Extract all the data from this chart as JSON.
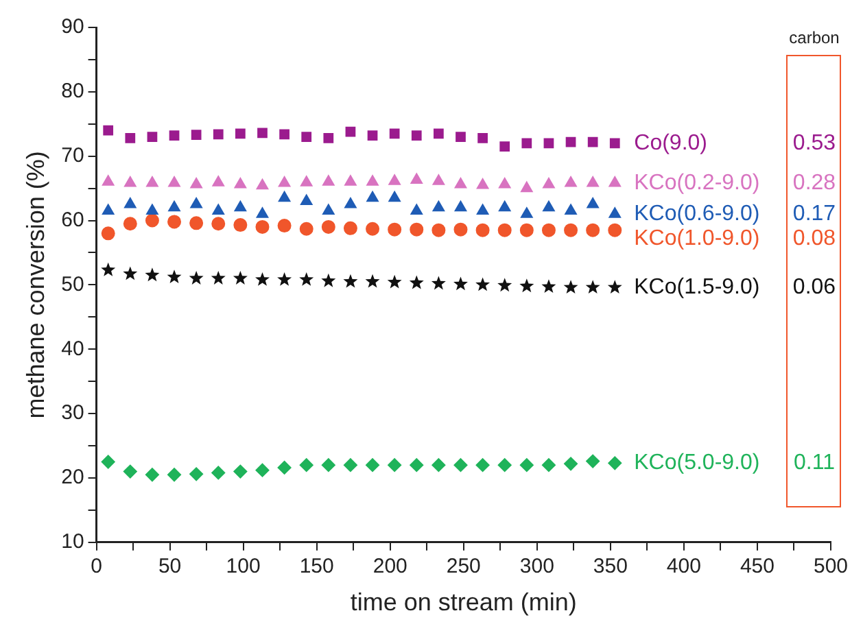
{
  "chart_data": {
    "type": "scatter",
    "xlabel": "time on stream (min)",
    "ylabel": "methane conversion (%)",
    "x": [
      8,
      23,
      38,
      53,
      68,
      83,
      98,
      113,
      128,
      143,
      158,
      173,
      188,
      203,
      218,
      233,
      248,
      263,
      278,
      293,
      308,
      323,
      338,
      353
    ],
    "series": [
      {
        "name": "Co(9.0)",
        "color": "#9b1b8e",
        "marker": "square",
        "values": [
          74,
          72.8,
          73,
          73.2,
          73.3,
          73.4,
          73.5,
          73.6,
          73.4,
          73,
          72.8,
          73.8,
          73.2,
          73.5,
          73.2,
          73.5,
          73,
          72.8,
          71.5,
          72,
          72,
          72.2,
          72.2,
          72
        ]
      },
      {
        "name": "KCo(0.2-9.0)",
        "color": "#d873c0",
        "marker": "triangle",
        "values": [
          66,
          65.8,
          65.8,
          65.8,
          65.6,
          65.9,
          65.6,
          65.4,
          65.8,
          65.9,
          66,
          66,
          66,
          66.1,
          66.3,
          66.1,
          65.6,
          65.5,
          65.6,
          65,
          65.6,
          65.8,
          65.8,
          65.8
        ]
      },
      {
        "name": "KCo(0.6-9.0)",
        "color": "#1f5cb5",
        "marker": "triangle",
        "values": [
          61.5,
          62.5,
          61.5,
          62,
          62.5,
          61.5,
          62,
          61,
          63.5,
          63,
          61.5,
          62.5,
          63.5,
          63.5,
          61.5,
          62,
          62,
          61.5,
          62,
          61,
          62,
          61.5,
          62.5,
          61
        ]
      },
      {
        "name": "KCo(1.0-9.0)",
        "color": "#f0562b",
        "marker": "circle",
        "values": [
          58,
          59.5,
          60,
          59.8,
          59.6,
          59.5,
          59.3,
          59,
          59.2,
          58.7,
          59,
          58.8,
          58.7,
          58.6,
          58.6,
          58.5,
          58.6,
          58.5,
          58.5,
          58.5,
          58.5,
          58.5,
          58.5,
          58.5
        ]
      },
      {
        "name": "KCo(1.5-9.0)",
        "color": "#111111",
        "marker": "star",
        "values": [
          52.3,
          51.7,
          51.5,
          51.2,
          51,
          51,
          51,
          50.8,
          50.8,
          50.8,
          50.6,
          50.5,
          50.5,
          50.4,
          50.3,
          50.2,
          50.1,
          50,
          49.9,
          49.8,
          49.7,
          49.6,
          49.6,
          49.6
        ]
      },
      {
        "name": "KCo(5.0-9.0)",
        "color": "#1fb35a",
        "marker": "diamond",
        "values": [
          22.5,
          21,
          20.5,
          20.5,
          20.6,
          20.8,
          21,
          21.2,
          21.6,
          22,
          22,
          22,
          22,
          22,
          22,
          22,
          22,
          22,
          22,
          22,
          22,
          22.2,
          22.6,
          22.3
        ]
      }
    ],
    "annotations": [
      "carbon",
      "0.53",
      "0.28",
      "0.17",
      "0.08",
      "0.06",
      "0.11"
    ],
    "xlim": [
      0,
      500
    ],
    "xticks": [
      0,
      {
        "value": 25,
        "label": null
      },
      50,
      {
        "value": 75,
        "label": null
      },
      100,
      {
        "value": 125,
        "label": null
      },
      150,
      {
        "value": 175,
        "label": null
      },
      200,
      {
        "value": 225,
        "label": null
      },
      250,
      {
        "value": 275,
        "label": null
      },
      300,
      {
        "value": 325,
        "label": null
      },
      350,
      {
        "value": 375,
        "label": null
      },
      400,
      {
        "value": 425,
        "label": null
      },
      450,
      {
        "value": 475,
        "label": null
      },
      500
    ],
    "ylim": [
      10,
      90
    ],
    "yticks": [
      10,
      {
        "value": 15,
        "label": null
      },
      20,
      {
        "value": 25,
        "label": null
      },
      30,
      {
        "value": 35,
        "label": null
      },
      40,
      {
        "value": 45,
        "label": null
      },
      50,
      {
        "value": 55,
        "label": null
      },
      60,
      {
        "value": 65,
        "label": null
      },
      70,
      {
        "value": 75,
        "label": null
      },
      80,
      {
        "value": 85,
        "label": null
      },
      90
    ],
    "grid": false,
    "legend": false
  }
}
